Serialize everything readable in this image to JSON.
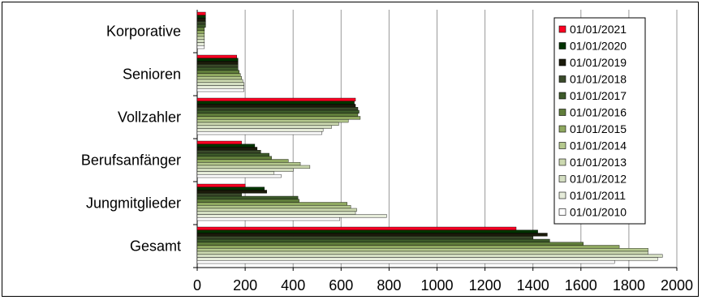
{
  "chart_data": {
    "type": "bar",
    "orientation": "horizontal",
    "categories": [
      "Korporative",
      "Senioren",
      "Vollzahler",
      "Berufsanfänger",
      "Jungmitglieder",
      "Gesamt"
    ],
    "x_ticks": [
      "0",
      "200",
      "400",
      "600",
      "800",
      "1000",
      "1200",
      "1400",
      "1600",
      "1800",
      "2000"
    ],
    "xlim": [
      0,
      2000
    ],
    "grid": "vertical",
    "legend_position": "right",
    "series": [
      {
        "name": "01/01/2021",
        "color": "#ff0022",
        "values": [
          35,
          165,
          660,
          185,
          200,
          1330
        ]
      },
      {
        "name": "01/01/2020",
        "color": "#003300",
        "values": [
          35,
          170,
          655,
          240,
          280,
          1420
        ]
      },
      {
        "name": "01/01/2019",
        "color": "#1a1a0a",
        "values": [
          35,
          170,
          660,
          250,
          290,
          1460
        ]
      },
      {
        "name": "01/01/2018",
        "color": "#3a4a2a",
        "values": [
          35,
          170,
          670,
          265,
          185,
          1400
        ]
      },
      {
        "name": "01/01/2017",
        "color": "#3d5a2a",
        "values": [
          35,
          170,
          675,
          300,
          420,
          1470
        ]
      },
      {
        "name": "01/01/2016",
        "color": "#607d3b",
        "values": [
          30,
          175,
          670,
          310,
          425,
          1610
        ]
      },
      {
        "name": "01/01/2015",
        "color": "#8fa860",
        "values": [
          30,
          180,
          680,
          380,
          625,
          1760
        ]
      },
      {
        "name": "01/01/2014",
        "color": "#b5c98e",
        "values": [
          30,
          185,
          630,
          430,
          640,
          1880
        ]
      },
      {
        "name": "01/01/2013",
        "color": "#ccd9b0",
        "values": [
          30,
          190,
          590,
          470,
          665,
          1880
        ]
      },
      {
        "name": "01/01/2012",
        "color": "#d4dec2",
        "values": [
          30,
          195,
          560,
          400,
          660,
          1940
        ]
      },
      {
        "name": "01/01/2011",
        "color": "#e6ecda",
        "values": [
          30,
          195,
          525,
          320,
          790,
          1920
        ]
      },
      {
        "name": "01/01/2010",
        "color": "#ffffff",
        "values": [
          30,
          195,
          520,
          350,
          595,
          1740
        ]
      }
    ]
  }
}
